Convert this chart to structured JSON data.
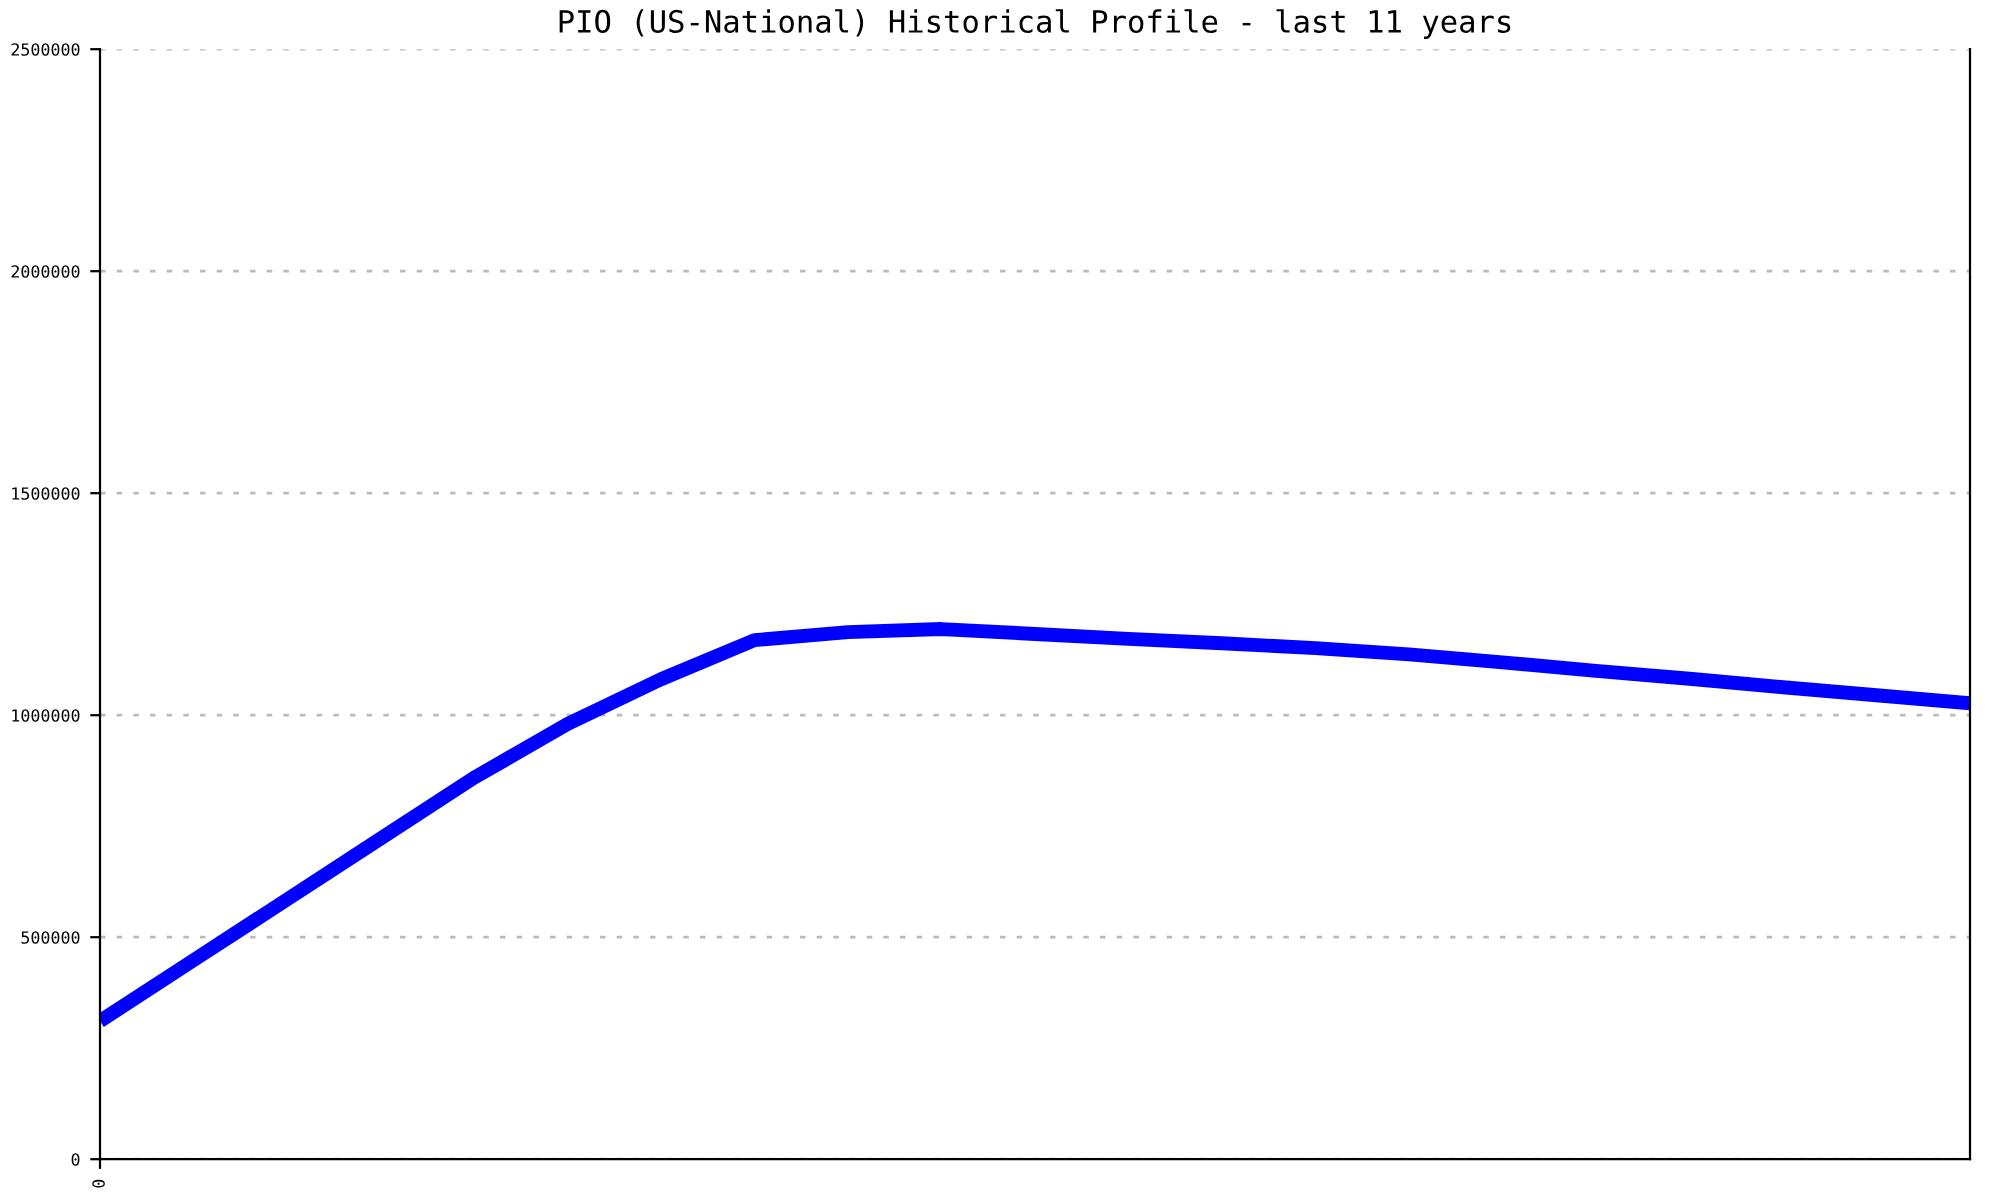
{
  "chart_data": {
    "type": "line",
    "title": "PIO (US-National) Historical Profile - last 11 years",
    "categories": [
      "0",
      null,
      null,
      null,
      null,
      null,
      null,
      null,
      null,
      null,
      null,
      null,
      null,
      null,
      null,
      null,
      null,
      null,
      null,
      null,
      null
    ],
    "series": [
      {
        "color": "#0000ff",
        "values": [
          311000,
          448000,
          585000,
          722000,
          859000,
          980000,
          1081000,
          1169000,
          1187000,
          1194000,
          1183000,
          1172000,
          1162000,
          1151000,
          1137000,
          1119000,
          1100000,
          1082000,
          1063000,
          1045000,
          1027000
        ]
      }
    ],
    "ylim": [
      0,
      2500000
    ],
    "yticks": [
      0,
      500000,
      1000000,
      1500000,
      2000000,
      2500000
    ],
    "grid": "y",
    "marker": "none",
    "line_style": "solid",
    "legend": false
  }
}
